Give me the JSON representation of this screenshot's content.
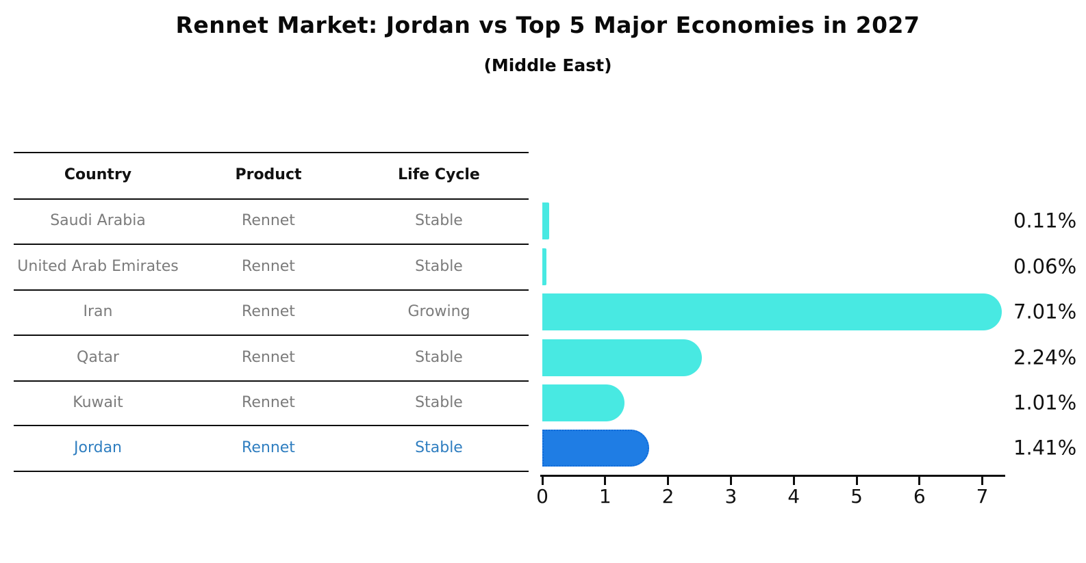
{
  "title": "Rennet Market: Jordan vs Top 5 Major Economies in 2027",
  "subtitle": "(Middle East)",
  "table": {
    "headers": {
      "country": "Country",
      "product": "Product",
      "life_cycle": "Life Cycle"
    },
    "rows": [
      {
        "country": "Saudi Arabia",
        "product": "Rennet",
        "life_cycle": "Stable",
        "highlight": false
      },
      {
        "country": "United Arab Emirates",
        "product": "Rennet",
        "life_cycle": "Stable",
        "highlight": false
      },
      {
        "country": "Iran",
        "product": "Rennet",
        "life_cycle": "Growing",
        "highlight": false
      },
      {
        "country": "Qatar",
        "product": "Rennet",
        "life_cycle": "Stable",
        "highlight": false
      },
      {
        "country": "Kuwait",
        "product": "Rennet",
        "life_cycle": "Stable",
        "highlight": false
      },
      {
        "country": "Jordan",
        "product": "Rennet",
        "life_cycle": "Stable",
        "highlight": true
      }
    ]
  },
  "chart_data": {
    "type": "bar",
    "orientation": "horizontal",
    "title": "Rennet Market: Jordan vs Top 5 Major Economies in 2027",
    "subtitle": "(Middle East)",
    "categories": [
      "Saudi Arabia",
      "United Arab Emirates",
      "Iran",
      "Qatar",
      "Kuwait",
      "Jordan"
    ],
    "values": [
      0.11,
      0.06,
      7.01,
      2.24,
      1.01,
      1.41
    ],
    "value_labels": [
      "0.11%",
      "0.06%",
      "7.01%",
      "2.24%",
      "1.01%",
      "1.41%"
    ],
    "highlight_index": 5,
    "x_ticks": [
      "0",
      "1",
      "2",
      "3",
      "4",
      "5",
      "6",
      "7"
    ],
    "xlim": [
      0,
      7.36
    ],
    "grid": false,
    "legend": false,
    "units": "percent"
  },
  "colors": {
    "bar": "#48e9e2",
    "highlight_bar": "#1f7de4",
    "highlight_bar_border": "#0f6ad8",
    "highlight_text": "#2f7ec0",
    "table_text": "#7b7b7b",
    "ink": "#0d0d0d"
  }
}
